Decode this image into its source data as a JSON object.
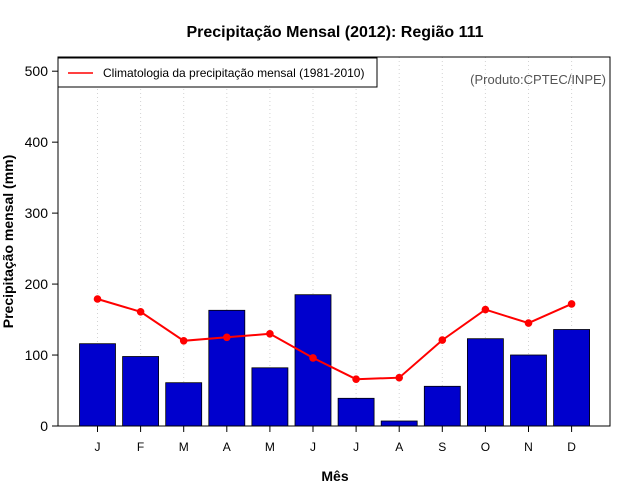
{
  "chart_data": {
    "type": "bar",
    "title": "Precipitação Mensal (2012): Região 111",
    "xlabel": "Mês",
    "ylabel": "Precipitação mensal (mm)",
    "ylim": [
      0,
      520
    ],
    "yticks": [
      0,
      100,
      200,
      300,
      400,
      500
    ],
    "grid": "vertical dotted",
    "categories": [
      "J",
      "F",
      "M",
      "A",
      "M",
      "J",
      "J",
      "A",
      "S",
      "O",
      "N",
      "D"
    ],
    "series": [
      {
        "name": "2012",
        "type": "bar",
        "color": "#0000CD",
        "values": [
          116,
          98,
          61,
          163,
          82,
          185,
          39,
          7,
          56,
          123,
          100,
          136
        ]
      },
      {
        "name": "Climatologia da precipitação mensal (1981-2010)",
        "type": "line",
        "color": "#FF0000",
        "values": [
          179,
          161,
          120,
          125,
          130,
          96,
          66,
          68,
          121,
          164,
          145,
          172
        ]
      }
    ],
    "legend_position": "top-left",
    "annotation": "(Produto:CPTEC/INPE)"
  }
}
